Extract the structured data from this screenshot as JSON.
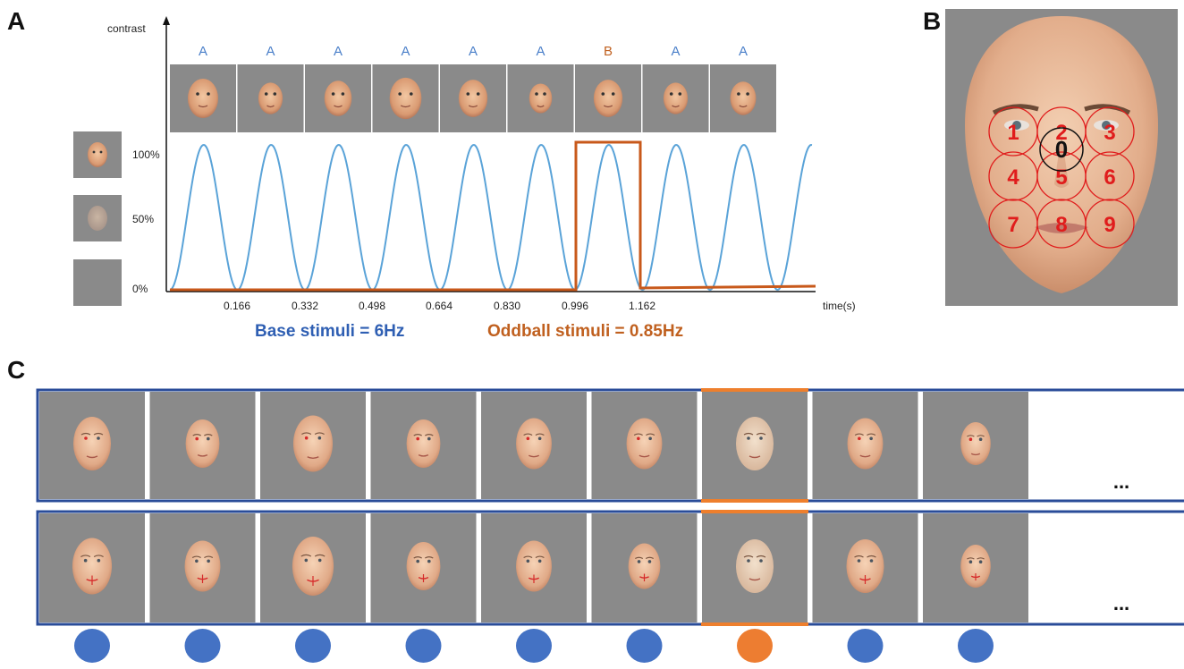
{
  "panels": {
    "a": "A",
    "b": "B",
    "c": "C"
  },
  "panel_a": {
    "y_axis_label": "contrast",
    "x_axis_label": "time(s)",
    "contrast_levels": [
      "100%",
      "50%",
      "0%"
    ],
    "sequence_labels": [
      "A",
      "A",
      "A",
      "A",
      "A",
      "A",
      "B",
      "A",
      "A"
    ],
    "time_ticks": [
      "0.166",
      "0.332",
      "0.498",
      "0.664",
      "0.830",
      "0.996",
      "1.162"
    ],
    "base_caption": "Base stimuli = 6Hz",
    "oddball_caption": "Oddball stimuli = 0.85Hz",
    "colors": {
      "base": "#2f5fb3",
      "oddball": "#c0601f",
      "wave": "#5aa3d8",
      "frame": "#c8591b"
    }
  },
  "panel_b": {
    "center_number": "0",
    "region_numbers": [
      "1",
      "2",
      "3",
      "4",
      "5",
      "6",
      "7",
      "8",
      "9"
    ],
    "colors": {
      "regions": "#e01c1c",
      "center": "#111111",
      "background": "#8a8a8a"
    }
  },
  "panel_c": {
    "ellipsis": "...",
    "rows": 2,
    "frames_per_row": 9,
    "oddball_index": 6,
    "colors": {
      "border": "#2a4c99",
      "oddball": "#ee7f2d",
      "dot": "#4472c4",
      "odd_dot": "#ed7d31",
      "frame_bg": "#8a8a8a"
    }
  }
}
